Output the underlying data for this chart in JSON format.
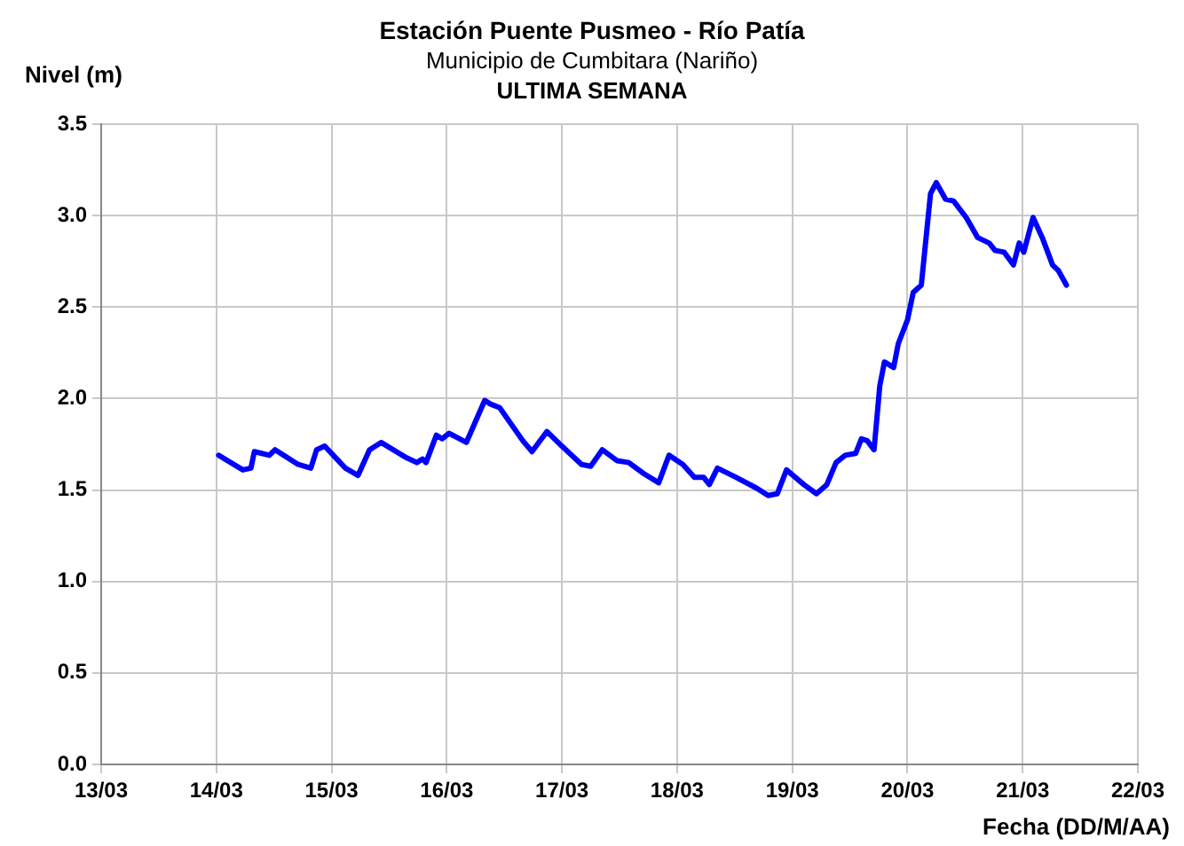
{
  "chart_data": {
    "type": "line",
    "title": "Estación Puente Pusmeo - Río Patía",
    "subtitle": "Municipio de Cumbitara (Nariño)",
    "annotations": [
      "ULTIMA SEMANA"
    ],
    "xlabel": "Fecha (DD/M/AA)",
    "ylabel": "Nivel (m)",
    "series": [
      {
        "color": "#0000ff",
        "x": [
          "--03-14T00:29",
          "--03-14T05:31",
          "--03-14T07:12",
          "--03-14T07:55",
          "--03-14T11:02",
          "--03-14T12:14",
          "--03-14T17:02",
          "--03-14T19:41",
          "--03-14T20:53",
          "--03-14T22:34",
          "--03-15T02:53",
          "--03-15T05:31",
          "--03-15T07:55",
          "--03-15T10:19",
          "--03-15T15:22",
          "--03-15T17:46",
          "--03-15T18:58",
          "--03-15T19:41",
          "--03-15T21:50",
          "--03-15T23:02",
          "--03-16T00:29",
          "--03-16T04:05",
          "--03-16T07:55",
          "--03-16T09:07",
          "--03-16T11:02",
          "--03-16T15:50",
          "--03-16T17:46",
          "--03-16T20:53",
          "--03-17T00:00",
          "--03-17T04:05",
          "--03-17T06:00",
          "--03-17T08:24",
          "--03-17T11:31",
          "--03-17T13:55",
          "--03-17T17:02",
          "--03-17T20:10",
          "--03-17T22:19",
          "--03-18T01:12",
          "--03-18T03:36",
          "--03-18T05:31",
          "--03-18T06:43",
          "--03-18T08:24",
          "--03-18T12:14",
          "--03-18T16:34",
          "--03-18T18:58",
          "--03-18T20:53",
          "--03-18T22:48",
          "--03-19T02:24",
          "--03-19T05:02",
          "--03-19T07:12",
          "--03-19T09:07",
          "--03-19T11:02",
          "--03-19T13:12",
          "--03-19T14:24",
          "--03-19T15:36",
          "--03-19T17:02",
          "--03-19T18:14",
          "--03-19T19:12",
          "--03-19T21:07",
          "--03-19T22:05",
          "--03-20T00:00",
          "--03-20T01:12",
          "--03-20T02:53",
          "--03-20T04:48",
          "--03-20T06:00",
          "--03-20T07:55",
          "--03-20T09:36",
          "--03-20T12:14",
          "--03-20T14:38",
          "--03-20T17:02",
          "--03-20T18:14",
          "--03-20T20:10",
          "--03-20T22:05",
          "--03-20T23:17",
          "--03-21T00:14",
          "--03-21T02:10",
          "--03-21T04:05",
          "--03-21T06:14",
          "--03-21T07:26",
          "--03-21T09:07"
        ],
        "values": [
          1.69,
          1.61,
          1.62,
          1.71,
          1.69,
          1.72,
          1.64,
          1.62,
          1.72,
          1.74,
          1.62,
          1.58,
          1.72,
          1.76,
          1.68,
          1.65,
          1.67,
          1.65,
          1.8,
          1.78,
          1.81,
          1.76,
          1.99,
          1.97,
          1.95,
          1.77,
          1.71,
          1.82,
          1.74,
          1.64,
          1.63,
          1.72,
          1.66,
          1.65,
          1.59,
          1.54,
          1.69,
          1.64,
          1.57,
          1.57,
          1.53,
          1.62,
          1.57,
          1.51,
          1.47,
          1.48,
          1.61,
          1.53,
          1.48,
          1.53,
          1.65,
          1.69,
          1.7,
          1.78,
          1.77,
          1.72,
          2.07,
          2.2,
          2.17,
          2.3,
          2.43,
          2.58,
          2.62,
          3.12,
          3.18,
          3.09,
          3.08,
          2.99,
          2.88,
          2.85,
          2.81,
          2.8,
          2.73,
          2.85,
          2.8,
          2.99,
          2.88,
          2.73,
          2.7,
          2.62
        ]
      }
    ],
    "xlim": [
      "--03-13",
      "--03-22"
    ],
    "xticks": [
      {
        "value": "--03-13",
        "label": "13/03"
      },
      {
        "value": "--03-14",
        "label": "14/03"
      },
      {
        "value": "--03-15",
        "label": "15/03"
      },
      {
        "value": "--03-16",
        "label": "16/03"
      },
      {
        "value": "--03-17",
        "label": "17/03"
      },
      {
        "value": "--03-18",
        "label": "18/03"
      },
      {
        "value": "--03-19",
        "label": "19/03"
      },
      {
        "value": "--03-20",
        "label": "20/03"
      },
      {
        "value": "--03-21",
        "label": "21/03"
      },
      {
        "value": "--03-22",
        "label": "22/03"
      }
    ],
    "ylim": [
      0,
      3.5
    ],
    "yticks": [
      {
        "value": 0,
        "label": "0.0"
      },
      {
        "value": 0.5,
        "label": "0.5"
      },
      {
        "value": 1,
        "label": "1.0"
      },
      {
        "value": 1.5,
        "label": "1.5"
      },
      {
        "value": 2,
        "label": "2.0"
      },
      {
        "value": 2.5,
        "label": "2.5"
      },
      {
        "value": 3,
        "label": "3.0"
      },
      {
        "value": 3.5,
        "label": "3.5"
      }
    ],
    "grid": true,
    "legend": false,
    "marker": "none",
    "line_style": "solid"
  }
}
